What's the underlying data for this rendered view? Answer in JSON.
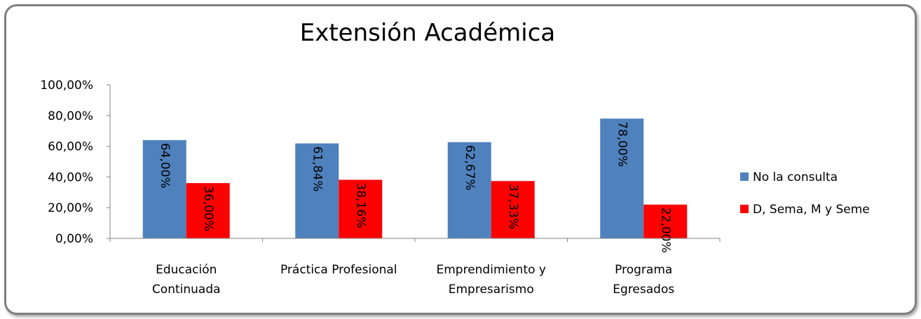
{
  "chart_data": {
    "type": "bar",
    "title": "Extensión Académica",
    "xlabel": "",
    "ylabel": "",
    "ylim": [
      0,
      1
    ],
    "yticks": [
      0,
      0.2,
      0.4,
      0.6,
      0.8,
      1.0
    ],
    "ytick_labels": [
      "0,00%",
      "20,00%",
      "40,00%",
      "60,00%",
      "80,00%",
      "100,00%"
    ],
    "categories": [
      [
        "Educación",
        "Continuada"
      ],
      [
        "Práctica Profesional"
      ],
      [
        "Emprendimiento y",
        "Empresarismo"
      ],
      [
        "Programa",
        "Egresados"
      ]
    ],
    "series": [
      {
        "name": "No la consulta",
        "color": "#4f81bd",
        "values": [
          0.64,
          0.6184,
          0.6267,
          0.78
        ],
        "labels": [
          "64,00%",
          "61,84%",
          "62,67%",
          "78,00%"
        ]
      },
      {
        "name": "D, Sema, M y Seme",
        "color": "#ff0000",
        "values": [
          0.36,
          0.3816,
          0.3733,
          0.22
        ],
        "labels": [
          "36,00%",
          "38,16%",
          "37,33%",
          "22,00%"
        ]
      }
    ],
    "grid": false,
    "legend_position": "right"
  }
}
